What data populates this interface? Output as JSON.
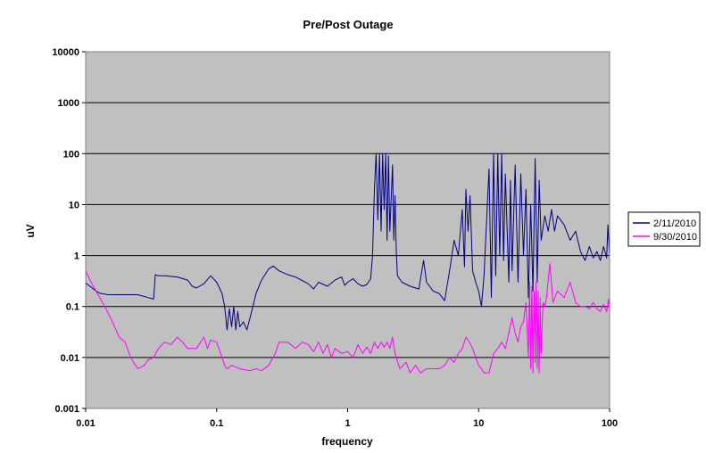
{
  "chart_data": {
    "type": "line",
    "title": "Pre/Post Outage",
    "xlabel": "frequency",
    "ylabel": "uV",
    "x_scale": "log",
    "y_scale": "log",
    "xlim": [
      0.01,
      100
    ],
    "ylim": [
      0.001,
      10000
    ],
    "x_ticks": [
      0.01,
      0.1,
      1,
      10,
      100
    ],
    "x_tick_labels": [
      "0.01",
      "0.1",
      "1",
      "10",
      "100"
    ],
    "y_ticks": [
      0.001,
      0.01,
      0.1,
      1,
      10,
      100,
      1000,
      10000
    ],
    "y_tick_labels": [
      "0.001",
      "0.01",
      "0.1",
      "1",
      "10",
      "100",
      "1000",
      "10000"
    ],
    "grid": "horizontal major gridlines",
    "plot_background": "#c0c0c0",
    "legend_position": "right",
    "series": [
      {
        "name": "2/11/2010",
        "color": "#000080",
        "points": [
          [
            0.01,
            0.29
          ],
          [
            0.011,
            0.24
          ],
          [
            0.012,
            0.2
          ],
          [
            0.013,
            0.18
          ],
          [
            0.015,
            0.17
          ],
          [
            0.02,
            0.17
          ],
          [
            0.025,
            0.17
          ],
          [
            0.03,
            0.15
          ],
          [
            0.033,
            0.14
          ],
          [
            0.034,
            0.42
          ],
          [
            0.036,
            0.4
          ],
          [
            0.04,
            0.4
          ],
          [
            0.05,
            0.38
          ],
          [
            0.06,
            0.33
          ],
          [
            0.065,
            0.25
          ],
          [
            0.07,
            0.23
          ],
          [
            0.08,
            0.28
          ],
          [
            0.09,
            0.4
          ],
          [
            0.1,
            0.3
          ],
          [
            0.11,
            0.18
          ],
          [
            0.115,
            0.1
          ],
          [
            0.12,
            0.035
          ],
          [
            0.125,
            0.09
          ],
          [
            0.13,
            0.04
          ],
          [
            0.135,
            0.1
          ],
          [
            0.14,
            0.035
          ],
          [
            0.145,
            0.08
          ],
          [
            0.15,
            0.04
          ],
          [
            0.16,
            0.05
          ],
          [
            0.17,
            0.035
          ],
          [
            0.18,
            0.06
          ],
          [
            0.2,
            0.18
          ],
          [
            0.22,
            0.33
          ],
          [
            0.25,
            0.55
          ],
          [
            0.27,
            0.62
          ],
          [
            0.3,
            0.5
          ],
          [
            0.35,
            0.42
          ],
          [
            0.4,
            0.38
          ],
          [
            0.5,
            0.28
          ],
          [
            0.55,
            0.22
          ],
          [
            0.6,
            0.3
          ],
          [
            0.7,
            0.25
          ],
          [
            0.8,
            0.33
          ],
          [
            0.9,
            0.38
          ],
          [
            0.95,
            0.26
          ],
          [
            1.0,
            0.3
          ],
          [
            1.1,
            0.35
          ],
          [
            1.2,
            0.28
          ],
          [
            1.3,
            0.25
          ],
          [
            1.4,
            0.27
          ],
          [
            1.5,
            0.35
          ],
          [
            1.55,
            1.0
          ],
          [
            1.6,
            20
          ],
          [
            1.65,
            100
          ],
          [
            1.7,
            5
          ],
          [
            1.75,
            100
          ],
          [
            1.8,
            3
          ],
          [
            1.85,
            100
          ],
          [
            1.9,
            8
          ],
          [
            1.95,
            100
          ],
          [
            2.0,
            2
          ],
          [
            2.05,
            90
          ],
          [
            2.1,
            3
          ],
          [
            2.2,
            60
          ],
          [
            2.25,
            2
          ],
          [
            2.3,
            15
          ],
          [
            2.35,
            1.2
          ],
          [
            2.4,
            0.4
          ],
          [
            2.6,
            0.3
          ],
          [
            3.0,
            0.25
          ],
          [
            3.5,
            0.22
          ],
          [
            3.8,
            0.8
          ],
          [
            4.0,
            0.3
          ],
          [
            4.5,
            0.2
          ],
          [
            5.0,
            0.18
          ],
          [
            5.5,
            0.13
          ],
          [
            6.0,
            0.5
          ],
          [
            6.5,
            2
          ],
          [
            7.0,
            1
          ],
          [
            7.5,
            8
          ],
          [
            7.8,
            0.6
          ],
          [
            8.0,
            20
          ],
          [
            8.3,
            3
          ],
          [
            8.6,
            15
          ],
          [
            9.0,
            0.5
          ],
          [
            9.5,
            0.3
          ],
          [
            10,
            0.2
          ],
          [
            10.5,
            0.1
          ],
          [
            11,
            0.4
          ],
          [
            12,
            50
          ],
          [
            12.5,
            0.15
          ],
          [
            13,
            100
          ],
          [
            13.5,
            0.4
          ],
          [
            14,
            100
          ],
          [
            14.5,
            1
          ],
          [
            15,
            100
          ],
          [
            15.5,
            0.8
          ],
          [
            16,
            40
          ],
          [
            17,
            0.3
          ],
          [
            17.5,
            30
          ],
          [
            18,
            0.5
          ],
          [
            19,
            60
          ],
          [
            20,
            0.3
          ],
          [
            21,
            40
          ],
          [
            22,
            1
          ],
          [
            23,
            20
          ],
          [
            24,
            0.15
          ],
          [
            25,
            10
          ],
          [
            26,
            0.2
          ],
          [
            27,
            80
          ],
          [
            28,
            0.3
          ],
          [
            29,
            30
          ],
          [
            30,
            2
          ],
          [
            32,
            6
          ],
          [
            34,
            3
          ],
          [
            36,
            8
          ],
          [
            38,
            3
          ],
          [
            40,
            6
          ],
          [
            45,
            4
          ],
          [
            50,
            2
          ],
          [
            55,
            3
          ],
          [
            60,
            1.2
          ],
          [
            65,
            0.8
          ],
          [
            70,
            1.5
          ],
          [
            75,
            0.9
          ],
          [
            80,
            1.2
          ],
          [
            85,
            0.8
          ],
          [
            90,
            1.5
          ],
          [
            95,
            0.9
          ],
          [
            97,
            4
          ],
          [
            100,
            1
          ]
        ]
      },
      {
        "name": "9/30/2010",
        "color": "#ff00ff",
        "points": [
          [
            0.01,
            0.5
          ],
          [
            0.011,
            0.3
          ],
          [
            0.012,
            0.2
          ],
          [
            0.014,
            0.1
          ],
          [
            0.016,
            0.05
          ],
          [
            0.018,
            0.025
          ],
          [
            0.02,
            0.02
          ],
          [
            0.022,
            0.01
          ],
          [
            0.025,
            0.006
          ],
          [
            0.028,
            0.007
          ],
          [
            0.03,
            0.009
          ],
          [
            0.033,
            0.01
          ],
          [
            0.036,
            0.015
          ],
          [
            0.04,
            0.02
          ],
          [
            0.045,
            0.018
          ],
          [
            0.05,
            0.025
          ],
          [
            0.055,
            0.02
          ],
          [
            0.06,
            0.015
          ],
          [
            0.07,
            0.015
          ],
          [
            0.08,
            0.025
          ],
          [
            0.085,
            0.015
          ],
          [
            0.09,
            0.022
          ],
          [
            0.1,
            0.02
          ],
          [
            0.11,
            0.01
          ],
          [
            0.115,
            0.007
          ],
          [
            0.12,
            0.006
          ],
          [
            0.13,
            0.007
          ],
          [
            0.15,
            0.006
          ],
          [
            0.18,
            0.0055
          ],
          [
            0.2,
            0.006
          ],
          [
            0.22,
            0.0055
          ],
          [
            0.25,
            0.007
          ],
          [
            0.28,
            0.012
          ],
          [
            0.3,
            0.02
          ],
          [
            0.35,
            0.02
          ],
          [
            0.4,
            0.015
          ],
          [
            0.45,
            0.02
          ],
          [
            0.5,
            0.018
          ],
          [
            0.55,
            0.013
          ],
          [
            0.6,
            0.02
          ],
          [
            0.65,
            0.012
          ],
          [
            0.7,
            0.018
          ],
          [
            0.75,
            0.01
          ],
          [
            0.8,
            0.015
          ],
          [
            0.9,
            0.012
          ],
          [
            1.0,
            0.013
          ],
          [
            1.1,
            0.01
          ],
          [
            1.2,
            0.018
          ],
          [
            1.3,
            0.012
          ],
          [
            1.4,
            0.016
          ],
          [
            1.5,
            0.012
          ],
          [
            1.6,
            0.02
          ],
          [
            1.7,
            0.015
          ],
          [
            1.8,
            0.02
          ],
          [
            1.9,
            0.016
          ],
          [
            2.0,
            0.02
          ],
          [
            2.1,
            0.015
          ],
          [
            2.2,
            0.025
          ],
          [
            2.3,
            0.012
          ],
          [
            2.5,
            0.006
          ],
          [
            2.8,
            0.008
          ],
          [
            3.0,
            0.005
          ],
          [
            3.3,
            0.007
          ],
          [
            3.6,
            0.005
          ],
          [
            4.0,
            0.006
          ],
          [
            4.5,
            0.006
          ],
          [
            5.0,
            0.006
          ],
          [
            5.5,
            0.007
          ],
          [
            6.0,
            0.01
          ],
          [
            6.5,
            0.008
          ],
          [
            7.0,
            0.012
          ],
          [
            7.5,
            0.015
          ],
          [
            8.0,
            0.025
          ],
          [
            8.5,
            0.02
          ],
          [
            9.0,
            0.015
          ],
          [
            9.5,
            0.01
          ],
          [
            10,
            0.007
          ],
          [
            10.5,
            0.006
          ],
          [
            11,
            0.005
          ],
          [
            12,
            0.005
          ],
          [
            13,
            0.012
          ],
          [
            14,
            0.015
          ],
          [
            15,
            0.02
          ],
          [
            16,
            0.015
          ],
          [
            17,
            0.03
          ],
          [
            18,
            0.06
          ],
          [
            19,
            0.03
          ],
          [
            20,
            0.02
          ],
          [
            21,
            0.04
          ],
          [
            22,
            0.05
          ],
          [
            23,
            0.12
          ],
          [
            24,
            0.01
          ],
          [
            24.5,
            0.3
          ],
          [
            25,
            0.006
          ],
          [
            25.5,
            0.25
          ],
          [
            26,
            0.005
          ],
          [
            26.5,
            0.2
          ],
          [
            27,
            0.008
          ],
          [
            27.5,
            0.3
          ],
          [
            28,
            0.006
          ],
          [
            28.5,
            0.2
          ],
          [
            29,
            0.005
          ],
          [
            29.5,
            0.15
          ],
          [
            30,
            0.012
          ],
          [
            31,
            0.12
          ],
          [
            32,
            0.1
          ],
          [
            33,
            0.15
          ],
          [
            35,
            0.7
          ],
          [
            37,
            0.12
          ],
          [
            40,
            0.2
          ],
          [
            45,
            0.15
          ],
          [
            50,
            0.3
          ],
          [
            55,
            0.12
          ],
          [
            60,
            0.1
          ],
          [
            65,
            0.1
          ],
          [
            70,
            0.09
          ],
          [
            75,
            0.12
          ],
          [
            80,
            0.09
          ],
          [
            85,
            0.08
          ],
          [
            90,
            0.11
          ],
          [
            95,
            0.08
          ],
          [
            98,
            0.14
          ],
          [
            100,
            0.09
          ]
        ]
      }
    ]
  }
}
